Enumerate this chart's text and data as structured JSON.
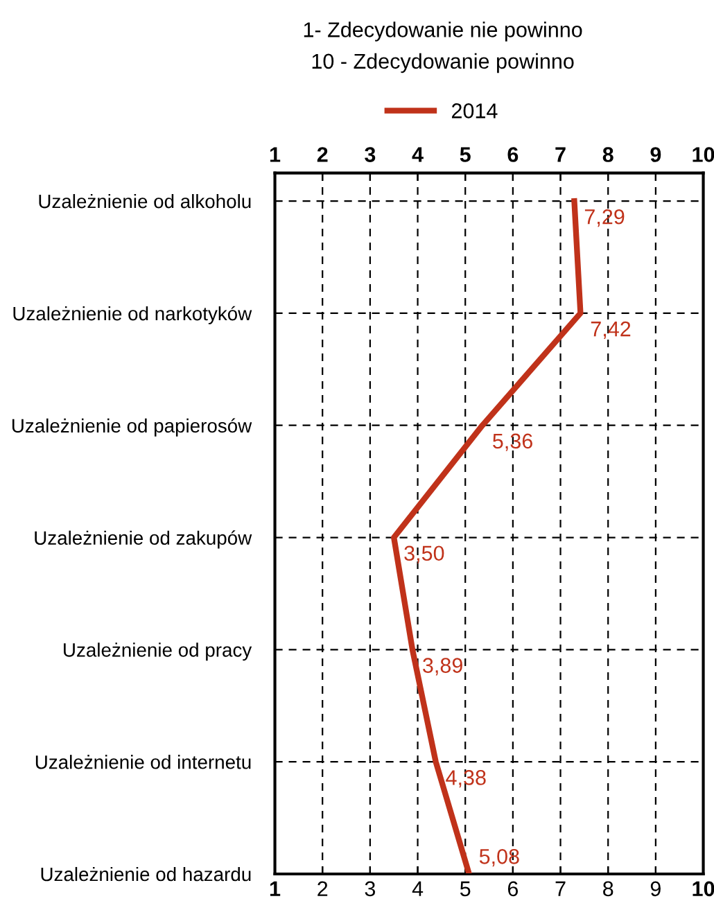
{
  "chart_data": {
    "type": "line",
    "orientation": "horizontal",
    "title": "1- Zdecydowanie nie powinno",
    "subtitle": "10 - Zdecydowanie powinno",
    "categories": [
      "Uzależnienie od alkoholu",
      "Uzależnienie od narkotyków",
      "Uzależnienie od papierosów",
      "Uzależnienie od zakupów",
      "Uzależnienie od pracy",
      "Uzależnienie od internetu",
      "Uzależnienie od hazardu"
    ],
    "series": [
      {
        "name": "2014",
        "color": "#c0321a",
        "values": [
          7.29,
          7.42,
          5.36,
          3.5,
          3.89,
          4.38,
          5.08
        ],
        "value_labels": [
          "7,29",
          "7,42",
          "5,36",
          "3,50",
          "3,89",
          "4,38",
          "5,08"
        ]
      }
    ],
    "xlim": [
      1,
      10
    ],
    "xticks": [
      1,
      2,
      3,
      4,
      5,
      6,
      7,
      8,
      9,
      10
    ],
    "x2lim": [
      1,
      10
    ],
    "x2ticks": [
      1,
      2,
      3,
      4,
      5,
      6,
      7,
      8,
      9,
      10
    ],
    "grid": true,
    "legend": "top",
    "marker": "none",
    "line_style": "solid"
  }
}
